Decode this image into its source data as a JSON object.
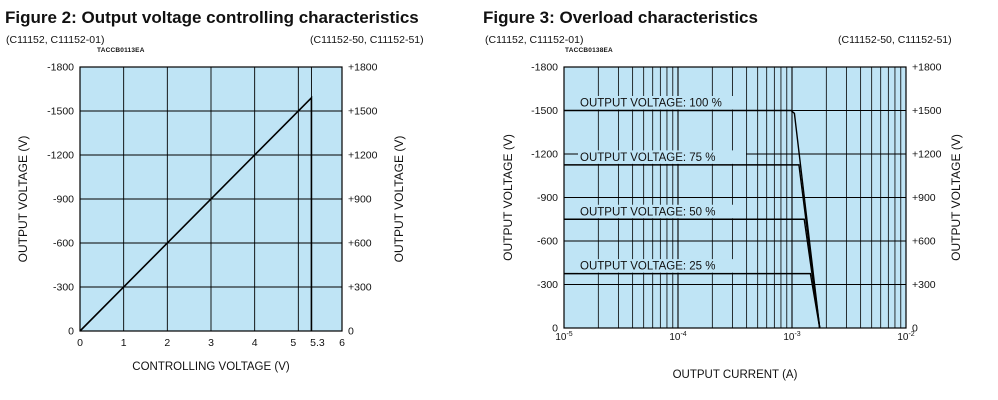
{
  "figures": [
    {
      "title": "Figure 2: Output voltage controlling characteristics",
      "left_models": "(C11152, C11152-01)",
      "right_models": "(C11152-50, C11152-51)",
      "code": "TACCB0113EA"
    },
    {
      "title": "Figure 3: Overload characteristics",
      "left_models": "(C11152, C11152-01)",
      "right_models": "(C11152-50, C11152-51)",
      "code": "TACCB0138EA"
    }
  ],
  "colors": {
    "plot_bg": "#bfe4f5",
    "grid": "#000000",
    "line": "#000000"
  },
  "chart_data": [
    {
      "type": "line",
      "xlabel": "CONTROLLING VOLTAGE (V)",
      "ylabel": "OUTPUT VOLTAGE (V)",
      "ylabel_right": "OUTPUT VOLTAGE (V)",
      "xlim": [
        0,
        6
      ],
      "ylim": [
        0,
        1800
      ],
      "x_ticks": [
        0,
        1,
        2,
        3,
        4,
        5,
        5.3,
        6
      ],
      "x_tick_labels": [
        "0",
        "1",
        "2",
        "3",
        "4",
        "5",
        "5.3",
        "6"
      ],
      "y_ticks": [
        0,
        300,
        600,
        900,
        1200,
        1500,
        1800
      ],
      "y_tick_labels_left": [
        "0",
        "-300",
        "-600",
        "-900",
        "-1200",
        "-1500",
        "-1800"
      ],
      "y_tick_labels_right": [
        "0",
        "+300",
        "+600",
        "+900",
        "+1200",
        "+1500",
        "+1800"
      ],
      "grid": true,
      "series": [
        {
          "x": [
            0,
            5.3,
            5.3
          ],
          "y": [
            0,
            1590,
            0
          ]
        }
      ]
    },
    {
      "type": "line",
      "xlabel": "OUTPUT CURRENT (A)",
      "ylabel": "OUTPUT VOLTAGE (V)",
      "ylabel_right": "OUTPUT VOLTAGE (V)",
      "x_scale": "log",
      "xlim": [
        1e-05,
        0.01
      ],
      "ylim": [
        0,
        1800
      ],
      "x_ticks": [
        1e-05,
        0.0001,
        0.001,
        0.01
      ],
      "x_tick_labels": [
        "10-5",
        "10-4",
        "10-3",
        "10-2"
      ],
      "y_ticks": [
        0,
        300,
        600,
        900,
        1200,
        1500,
        1800
      ],
      "y_tick_labels_left": [
        "0",
        "-300",
        "-600",
        "-900",
        "-1200",
        "-1500",
        "-1800"
      ],
      "y_tick_labels_right": [
        "0",
        "+300",
        "+600",
        "+900",
        "+1200",
        "+1500",
        "+1800"
      ],
      "grid": true,
      "series": [
        {
          "name": "OUTPUT VOLTAGE: 100 %",
          "x": [
            1e-05,
            0.00098,
            0.00105,
            0.00175
          ],
          "y": [
            1500,
            1500,
            1480,
            0
          ]
        },
        {
          "name": "OUTPUT VOLTAGE: 75 %",
          "x": [
            1e-05,
            0.00115,
            0.00175
          ],
          "y": [
            1125,
            1125,
            0
          ]
        },
        {
          "name": "OUTPUT VOLTAGE: 50 %",
          "x": [
            1e-05,
            0.00128,
            0.00175
          ],
          "y": [
            750,
            750,
            0
          ]
        },
        {
          "name": "OUTPUT VOLTAGE: 25 %",
          "x": [
            1e-05,
            0.00145,
            0.00175
          ],
          "y": [
            375,
            375,
            0
          ]
        }
      ]
    }
  ]
}
